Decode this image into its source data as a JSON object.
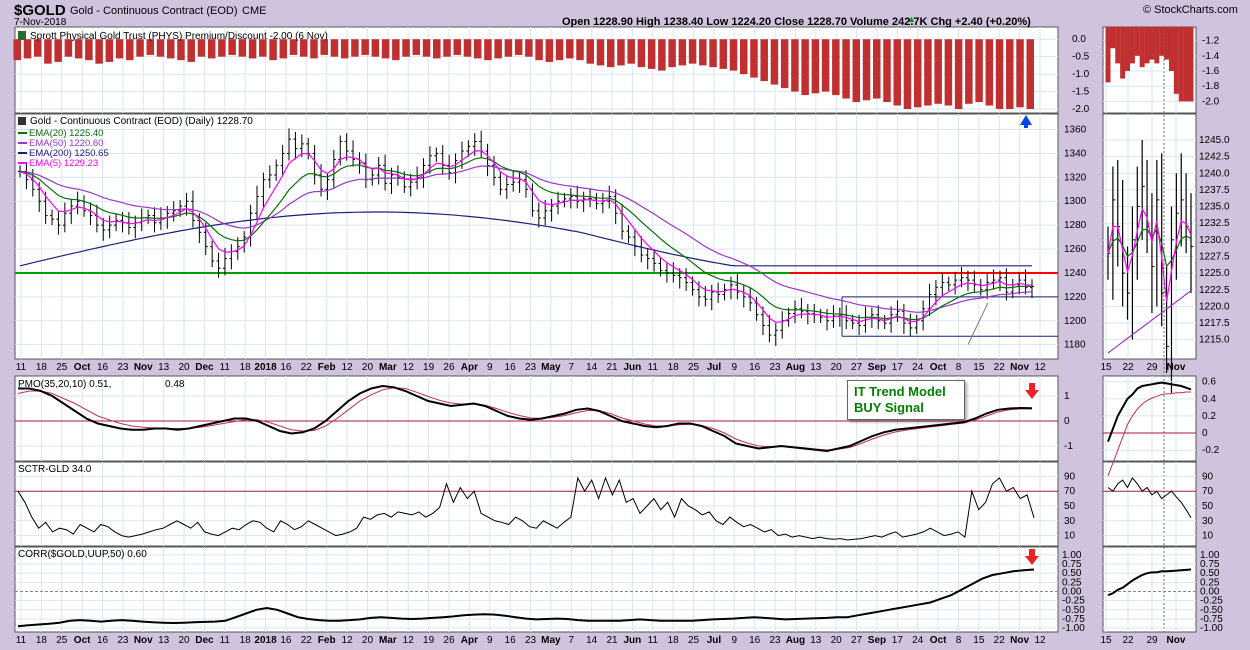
{
  "header": {
    "symbol": "$GOLD",
    "name": "Gold - Continuous Contract (EOD)",
    "exchange": "CME",
    "date": "7-Nov-2018",
    "brand": "© StockCharts.com",
    "quote": "Open 1228.90  High 1238.40  Low 1224.20  Close 1228.70  Volume 242.7K  Chg +2.40 (+0.20%)",
    "quote_arrow": "▲"
  },
  "colors": {
    "panel_bg": "#ffffff",
    "page_bg": "#cfc3de",
    "grid": "#d8e6f2",
    "up_bar": "#c03030",
    "price_bar": "#000000",
    "ema20": "#0a6e0a",
    "ema50": "#9a37c8",
    "ema200": "#1c1f7a",
    "ema5": "#ff00ff",
    "support_green": "#00a000",
    "resistance_red": "#ff0000",
    "signal_green": "#008000",
    "arrow_blue": "#0044ee",
    "arrow_red": "#ee2222"
  },
  "annotation": {
    "line1": "IT Trend Model",
    "line2": "BUY Signal"
  },
  "chart_data": [
    {
      "type": "bar",
      "id": "phys",
      "title": "Sprott Physical Gold Trust (PHYS) Premium/Discount -2.00 (6 Nov)",
      "ylim": [
        -2.2,
        0.15
      ],
      "yticks": [
        "0.0",
        "-0.5",
        "-1.0",
        "-1.5",
        "-2.0"
      ],
      "values": [
        -0.6,
        -0.55,
        -0.5,
        -0.7,
        -0.65,
        -0.5,
        -0.55,
        -0.6,
        -0.7,
        -0.65,
        -0.55,
        -0.6,
        -0.5,
        -0.45,
        -0.5,
        -0.55,
        -0.6,
        -0.65,
        -0.5,
        -0.55,
        -0.5,
        -0.45,
        -0.5,
        -0.55,
        -0.5,
        -0.6,
        -0.55,
        -0.45,
        -0.5,
        -0.55,
        -0.45,
        -0.5,
        -0.55,
        -0.5,
        -0.45,
        -0.5,
        -0.55,
        -0.6,
        -0.5,
        -0.45,
        -0.5,
        -0.55,
        -0.5,
        -0.45,
        -0.5,
        -0.55,
        -0.6,
        -0.55,
        -0.5,
        -0.45,
        -0.5,
        -0.6,
        -0.65,
        -0.6,
        -0.55,
        -0.6,
        -0.7,
        -0.75,
        -0.8,
        -0.75,
        -0.7,
        -0.8,
        -0.85,
        -0.9,
        -0.8,
        -0.75,
        -0.7,
        -0.75,
        -0.8,
        -0.85,
        -0.9,
        -1.0,
        -1.1,
        -1.2,
        -1.3,
        -1.4,
        -1.5,
        -1.6,
        -1.55,
        -1.5,
        -1.6,
        -1.7,
        -1.8,
        -1.75,
        -1.7,
        -1.8,
        -1.9,
        -2.0,
        -1.95,
        -1.9,
        -1.85,
        -1.9,
        -2.0,
        -1.85,
        -1.8,
        -1.9,
        -2.0,
        -2.0,
        -1.95,
        -2.0
      ]
    },
    {
      "type": "line",
      "id": "price",
      "title": "Gold - Continuous Contract (EOD) (Daily) 1228.70",
      "ylim": [
        1168,
        1373
      ],
      "yticks": [
        "1360",
        "1340",
        "1320",
        "1300",
        "1280",
        "1260",
        "1240",
        "1220",
        "1200",
        "1180"
      ],
      "close": [
        1325,
        1318,
        1310,
        1300,
        1288,
        1285,
        1280,
        1290,
        1296,
        1300,
        1292,
        1288,
        1280,
        1276,
        1280,
        1284,
        1282,
        1278,
        1282,
        1286,
        1288,
        1282,
        1286,
        1290,
        1292,
        1296,
        1300,
        1284,
        1274,
        1262,
        1250,
        1244,
        1252,
        1258,
        1262,
        1270,
        1290,
        1304,
        1318,
        1322,
        1330,
        1340,
        1352,
        1344,
        1348,
        1340,
        1322,
        1310,
        1318,
        1335,
        1350,
        1342,
        1335,
        1332,
        1318,
        1322,
        1330,
        1315,
        1322,
        1320,
        1312,
        1316,
        1320,
        1330,
        1338,
        1340,
        1330,
        1324,
        1334,
        1342,
        1346,
        1350,
        1342,
        1330,
        1320,
        1310,
        1314,
        1316,
        1318,
        1310,
        1292,
        1286,
        1292,
        1296,
        1300,
        1302,
        1304,
        1300,
        1302,
        1302,
        1298,
        1300,
        1304,
        1290,
        1275,
        1270,
        1262,
        1255,
        1252,
        1248,
        1242,
        1240,
        1238,
        1236,
        1232,
        1226,
        1220,
        1218,
        1224,
        1222,
        1226,
        1230,
        1224,
        1220,
        1215,
        1205,
        1196,
        1188,
        1192,
        1200,
        1206,
        1210,
        1208,
        1206,
        1205,
        1203,
        1200,
        1204,
        1205,
        1200,
        1198,
        1196,
        1203,
        1205,
        1200,
        1198,
        1205,
        1208,
        1198,
        1194,
        1200,
        1210,
        1222,
        1228,
        1232,
        1230,
        1234,
        1236,
        1234,
        1230,
        1226,
        1232,
        1234,
        1236,
        1224,
        1230,
        1234,
        1228,
        1228.7
      ],
      "series": [
        {
          "name": "EMA(20) 1225.40",
          "key": "ema20"
        },
        {
          "name": "EMA(50) 1220.60",
          "key": "ema50"
        },
        {
          "name": "EMA(200) 1250.65",
          "key": "ema200"
        },
        {
          "name": "EMA(5) 1229.23",
          "key": "ema5"
        }
      ],
      "levels": {
        "support": 1240,
        "resistance": 1240,
        "upper_channel": 1220,
        "lower_channel": 1187,
        "ema200_start": 1246
      },
      "xticks": [
        "11",
        "18",
        "25",
        "Oct",
        "16",
        "23",
        "Nov",
        "13",
        "20",
        "Dec",
        "11",
        "18",
        "2018",
        "16",
        "22",
        "Feb",
        "12",
        "20",
        "Mar",
        "12",
        "19",
        "26",
        "Apr",
        "9",
        "16",
        "23",
        "May",
        "7",
        "14",
        "21",
        "Jun",
        "11",
        "18",
        "25",
        "Jul",
        "9",
        "16",
        "23",
        "Aug",
        "13",
        "20",
        "27",
        "Sep",
        "17",
        "24",
        "Oct",
        "8",
        "15",
        "22",
        "Nov",
        "12"
      ],
      "xticks_bold": [
        "Oct",
        "Nov",
        "Dec",
        "2018",
        "Feb",
        "Mar",
        "Apr",
        "May",
        "Jun",
        "Jul",
        "Aug",
        "Sep",
        "Nov"
      ]
    },
    {
      "type": "line",
      "id": "pmo",
      "title": "PMO(35,20,10) 0.51, 0.48",
      "title_main": "PMO(35,20,10) 0.51,",
      "title_signal": "0.48",
      "ylim": [
        -1.6,
        1.8
      ],
      "yticks": [
        "1",
        "0",
        "-1"
      ],
      "pmo": [
        1.3,
        1.3,
        1.2,
        1.0,
        0.7,
        0.4,
        0.1,
        -0.1,
        -0.2,
        -0.3,
        -0.35,
        -0.35,
        -0.3,
        -0.3,
        -0.35,
        -0.3,
        -0.2,
        -0.1,
        0.0,
        0.1,
        0.1,
        0.0,
        -0.2,
        -0.4,
        -0.5,
        -0.45,
        -0.3,
        0.0,
        0.4,
        0.8,
        1.1,
        1.3,
        1.4,
        1.35,
        1.2,
        1.0,
        0.8,
        0.7,
        0.6,
        0.65,
        0.7,
        0.6,
        0.4,
        0.2,
        0.1,
        0.05,
        0.1,
        0.2,
        0.3,
        0.45,
        0.5,
        0.4,
        0.2,
        0.0,
        -0.1,
        -0.2,
        -0.25,
        -0.2,
        -0.1,
        -0.1,
        -0.2,
        -0.4,
        -0.6,
        -0.9,
        -1.0,
        -1.1,
        -1.05,
        -1.0,
        -1.05,
        -1.1,
        -1.15,
        -1.2,
        -1.1,
        -1.0,
        -0.8,
        -0.6,
        -0.45,
        -0.35,
        -0.3,
        -0.25,
        -0.2,
        -0.15,
        -0.1,
        -0.05,
        0.1,
        0.3,
        0.45,
        0.5,
        0.52,
        0.51
      ],
      "signal": [
        1.1,
        1.2,
        1.2,
        1.1,
        0.9,
        0.7,
        0.45,
        0.2,
        0.05,
        -0.1,
        -0.2,
        -0.25,
        -0.28,
        -0.3,
        -0.3,
        -0.3,
        -0.25,
        -0.18,
        -0.1,
        -0.02,
        0.05,
        0.05,
        -0.05,
        -0.2,
        -0.35,
        -0.4,
        -0.38,
        -0.2,
        0.1,
        0.45,
        0.8,
        1.05,
        1.25,
        1.33,
        1.3,
        1.15,
        0.98,
        0.83,
        0.72,
        0.67,
        0.67,
        0.63,
        0.5,
        0.35,
        0.22,
        0.12,
        0.1,
        0.15,
        0.22,
        0.33,
        0.42,
        0.42,
        0.3,
        0.12,
        0.0,
        -0.12,
        -0.2,
        -0.2,
        -0.15,
        -0.13,
        -0.18,
        -0.3,
        -0.48,
        -0.72,
        -0.88,
        -1.0,
        -1.03,
        -1.02,
        -1.04,
        -1.07,
        -1.12,
        -1.16,
        -1.13,
        -1.06,
        -0.9,
        -0.72,
        -0.56,
        -0.44,
        -0.36,
        -0.3,
        -0.24,
        -0.19,
        -0.13,
        -0.08,
        0.04,
        0.2,
        0.36,
        0.45,
        0.49,
        0.48
      ]
    },
    {
      "type": "line",
      "id": "sctr",
      "title": "SCTR-GLD 34.0",
      "ylim": [
        0,
        100
      ],
      "yticks": [
        "90",
        "70",
        "50",
        "30",
        "10"
      ],
      "values": [
        70,
        55,
        35,
        20,
        28,
        15,
        20,
        18,
        12,
        25,
        20,
        15,
        25,
        22,
        15,
        10,
        8,
        10,
        12,
        15,
        18,
        20,
        25,
        30,
        25,
        20,
        28,
        15,
        12,
        10,
        15,
        20,
        18,
        25,
        30,
        28,
        20,
        15,
        30,
        25,
        18,
        22,
        30,
        25,
        20,
        15,
        10,
        12,
        15,
        20,
        35,
        32,
        38,
        40,
        35,
        42,
        40,
        38,
        42,
        35,
        40,
        48,
        80,
        55,
        75,
        60,
        70,
        40,
        35,
        30,
        28,
        25,
        35,
        30,
        22,
        20,
        30,
        25,
        20,
        28,
        35,
        88,
        70,
        85,
        60,
        88,
        65,
        85,
        55,
        60,
        40,
        50,
        60,
        45,
        55,
        35,
        60,
        50,
        45,
        38,
        42,
        30,
        25,
        35,
        28,
        22,
        25,
        20,
        15,
        18,
        10,
        12,
        8,
        10,
        8,
        6,
        8,
        6,
        5,
        6,
        4,
        5,
        6,
        8,
        10,
        8,
        12,
        15,
        8,
        10,
        12,
        15,
        20,
        15,
        10,
        12,
        15,
        8,
        70,
        45,
        55,
        80,
        88,
        70,
        75,
        60,
        65,
        34
      ]
    },
    {
      "type": "line",
      "id": "corr",
      "title": "CORR($GOLD,UUP,50) 0.60",
      "ylim": [
        -1.05,
        1.05
      ],
      "yticks": [
        "1.00",
        "0.75",
        "0.50",
        "0.25",
        "0.00",
        "-0.25",
        "-0.50",
        "-0.75",
        "-1.00"
      ],
      "values": [
        -0.95,
        -0.92,
        -0.9,
        -0.88,
        -0.85,
        -0.8,
        -0.78,
        -0.8,
        -0.82,
        -0.8,
        -0.78,
        -0.8,
        -0.82,
        -0.84,
        -0.85,
        -0.86,
        -0.85,
        -0.84,
        -0.83,
        -0.82,
        -0.8,
        -0.7,
        -0.6,
        -0.5,
        -0.45,
        -0.5,
        -0.6,
        -0.7,
        -0.75,
        -0.78,
        -0.8,
        -0.8,
        -0.78,
        -0.76,
        -0.72,
        -0.7,
        -0.72,
        -0.74,
        -0.75,
        -0.74,
        -0.72,
        -0.7,
        -0.68,
        -0.65,
        -0.63,
        -0.62,
        -0.63,
        -0.66,
        -0.7,
        -0.74,
        -0.76,
        -0.75,
        -0.74,
        -0.75,
        -0.78,
        -0.8,
        -0.8,
        -0.8,
        -0.8,
        -0.78,
        -0.76,
        -0.78,
        -0.8,
        -0.8,
        -0.8,
        -0.8,
        -0.78,
        -0.76,
        -0.75,
        -0.74,
        -0.72,
        -0.7,
        -0.72,
        -0.74,
        -0.76,
        -0.75,
        -0.74,
        -0.73,
        -0.72,
        -0.7,
        -0.7,
        -0.65,
        -0.6,
        -0.55,
        -0.5,
        -0.45,
        -0.4,
        -0.35,
        -0.3,
        -0.2,
        -0.1,
        0.05,
        0.2,
        0.35,
        0.45,
        0.5,
        0.55,
        0.58,
        0.6
      ]
    },
    {
      "type": "line",
      "id": "zoom",
      "title": "",
      "price_ylim": [
        1213,
        1248
      ],
      "price_yticks": [
        "1245.0",
        "1242.5",
        "1240.0",
        "1237.5",
        "1235.0",
        "1232.5",
        "1230.0",
        "1227.5",
        "1225.0",
        "1222.5",
        "1220.0",
        "1217.5",
        "1215.0"
      ],
      "phys_yticks": [
        "-1.2",
        "-1.4",
        "-1.6",
        "-1.8",
        "-2.0"
      ],
      "pmo_yticks": [
        "0.6",
        "0.4",
        "0.2",
        "0",
        "-0.2"
      ],
      "sctr_yticks": [
        "90",
        "70",
        "50",
        "30",
        "10"
      ],
      "corr_yticks": [
        "1.00",
        "0.75",
        "0.50",
        "0.25",
        "0.00",
        "-0.25",
        "-0.50",
        "-0.75",
        "-1.00"
      ],
      "xticks": [
        "15",
        "22",
        "29",
        "Nov"
      ],
      "phys_values": [
        -1.75,
        -1.3,
        -1.5,
        -1.7,
        -1.6,
        -1.5,
        -1.4,
        -1.55,
        -1.5,
        -1.45,
        -1.5,
        -1.4,
        -1.45,
        -1.6,
        -1.9,
        -2.0,
        -2.0,
        -2.0
      ],
      "price_close": [
        1228,
        1236,
        1232,
        1225,
        1222,
        1230,
        1235,
        1238,
        1232,
        1226,
        1236,
        1222,
        1214,
        1230,
        1234,
        1236,
        1232,
        1229
      ],
      "pmo_values": [
        -0.1,
        0.05,
        0.2,
        0.3,
        0.4,
        0.45,
        0.52,
        0.55,
        0.56,
        0.57,
        0.58,
        0.59,
        0.58,
        0.57,
        0.56,
        0.55,
        0.53,
        0.51
      ],
      "pmo_signal": [
        -0.5,
        -0.35,
        -0.2,
        -0.05,
        0.1,
        0.2,
        0.28,
        0.34,
        0.38,
        0.41,
        0.43,
        0.45,
        0.46,
        0.46,
        0.47,
        0.47,
        0.48,
        0.48
      ],
      "sctr_values": [
        75,
        70,
        80,
        85,
        75,
        88,
        80,
        70,
        75,
        65,
        70,
        60,
        65,
        70,
        62,
        55,
        45,
        34
      ],
      "corr_values": [
        -0.1,
        -0.05,
        0.05,
        0.1,
        0.2,
        0.3,
        0.38,
        0.45,
        0.5,
        0.52,
        0.52,
        0.55,
        0.55,
        0.56,
        0.57,
        0.58,
        0.59,
        0.6
      ]
    }
  ]
}
